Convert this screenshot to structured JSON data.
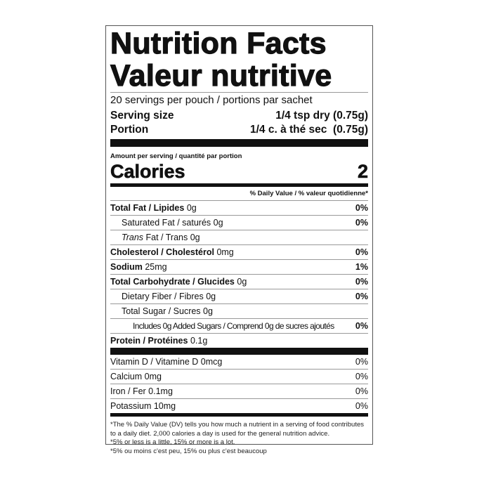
{
  "title_en": "Nutrition Facts",
  "title_fr": "Valeur nutritive",
  "servings": "20 servings per pouch / portions par sachet",
  "serving_size": {
    "label": "Serving size",
    "value": "1/4 tsp dry (0.75g)"
  },
  "portion": {
    "label": "Portion",
    "value": "1/4 c. à thé sec  (0.75g)"
  },
  "amount_per_serving": "Amount per serving / quantité par portion",
  "calories": {
    "label": "Calories",
    "value": "2"
  },
  "dv_header": "% Daily Value / % valeur quotidienne*",
  "nutrients": [
    {
      "name": "Total Fat / Lipides",
      "amount": "0g",
      "dv": "0%",
      "bold": true,
      "indent": 0
    },
    {
      "name": "Saturated Fat / saturés",
      "amount": "0g",
      "dv": "0%",
      "bold": false,
      "indent": 1
    },
    {
      "name": "Trans",
      "name_rest": " Fat / Trans",
      "amount": "0g",
      "dv": "",
      "bold": false,
      "indent": 1,
      "italic": true
    },
    {
      "name": "Cholesterol / Cholestérol",
      "amount": "0mg",
      "dv": "0%",
      "bold": true,
      "indent": 0
    },
    {
      "name": "Sodium",
      "amount": "25mg",
      "dv": "1%",
      "bold": true,
      "indent": 0
    },
    {
      "name": "Total Carbohydrate / Glucides",
      "amount": "0g",
      "dv": "0%",
      "bold": true,
      "indent": 0
    },
    {
      "name": "Dietary Fiber / Fibres",
      "amount": "0g",
      "dv": "0%",
      "bold": false,
      "indent": 1
    },
    {
      "name": "Total Sugar / Sucres",
      "amount": "0g",
      "dv": "",
      "bold": false,
      "indent": 1
    },
    {
      "name": "Includes 0g Added Sugars / Comprend 0g de sucres ajoutés",
      "amount": "",
      "dv": "0%",
      "bold": false,
      "indent": 2
    },
    {
      "name": "Protein / Protéines",
      "amount": "0.1g",
      "dv": "",
      "bold": true,
      "indent": 0
    }
  ],
  "vitamins": [
    {
      "text": "Vitamin D / Vitamine D 0mcg",
      "dv": "0%"
    },
    {
      "text": "Calcium 0mg",
      "dv": "0%"
    },
    {
      "text": "Iron / Fer 0.1mg",
      "dv": "0%"
    },
    {
      "text": "Potassium 10mg",
      "dv": "0%"
    }
  ],
  "footnotes": [
    "*The % Daily Value (DV) tells you how much a nutrient in a serving of food contributes to a daily diet. 2,000 calories a day is used for the general nutrition advice.",
    "*5% or less is a little, 15% or more is a lot.",
    "*5% ou moins c'est peu, 15% ou plus c'est beaucoup"
  ]
}
